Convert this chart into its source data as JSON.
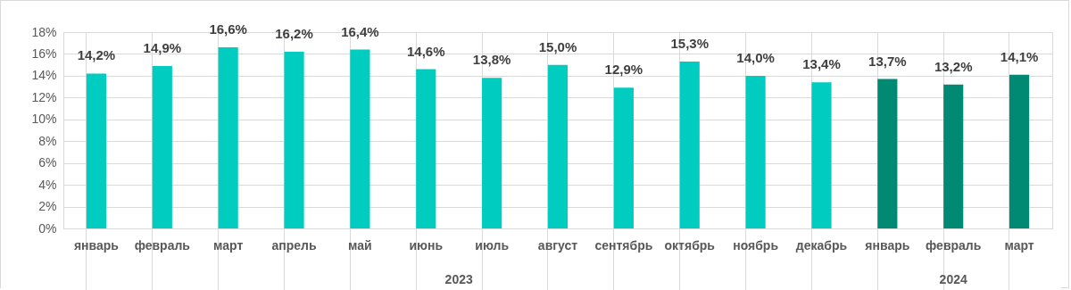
{
  "chart_data": {
    "type": "bar",
    "categories": [
      "январь",
      "февраль",
      "март",
      "апрель",
      "май",
      "июнь",
      "июль",
      "август",
      "сентябрь",
      "октябрь",
      "ноябрь",
      "декабрь",
      "январь",
      "февраль",
      "март"
    ],
    "values": [
      14.2,
      14.9,
      16.6,
      16.2,
      16.4,
      14.6,
      13.8,
      15.0,
      12.9,
      15.3,
      14.0,
      13.4,
      13.7,
      13.2,
      14.1
    ],
    "colors": [
      "#00ccc0",
      "#00ccc0",
      "#00ccc0",
      "#00ccc0",
      "#00ccc0",
      "#00ccc0",
      "#00ccc0",
      "#00ccc0",
      "#00ccc0",
      "#00ccc0",
      "#00ccc0",
      "#00ccc0",
      "#008a74",
      "#008a74",
      "#008a74"
    ],
    "value_labels": [
      "14,2%",
      "14,9%",
      "16,6%",
      "16,2%",
      "16,4%",
      "14,6%",
      "13,8%",
      "15,0%",
      "12,9%",
      "15,3%",
      "14,0%",
      "13,4%",
      "13,7%",
      "13,2%",
      "14,1%"
    ],
    "annotations": [
      "2023",
      "2024"
    ],
    "ylim": [
      0,
      18
    ],
    "yticks": [
      {
        "value": 0,
        "label": "0%"
      },
      {
        "value": 2,
        "label": "2%"
      },
      {
        "value": 4,
        "label": "4%"
      },
      {
        "value": 6,
        "label": "6%"
      },
      {
        "value": 8,
        "label": "8%"
      },
      {
        "value": 10,
        "label": "10%"
      },
      {
        "value": 12,
        "label": "12%"
      },
      {
        "value": 14,
        "label": "14%"
      },
      {
        "value": 16,
        "label": "16%"
      },
      {
        "value": 18,
        "label": "18%"
      }
    ],
    "grid": true
  }
}
